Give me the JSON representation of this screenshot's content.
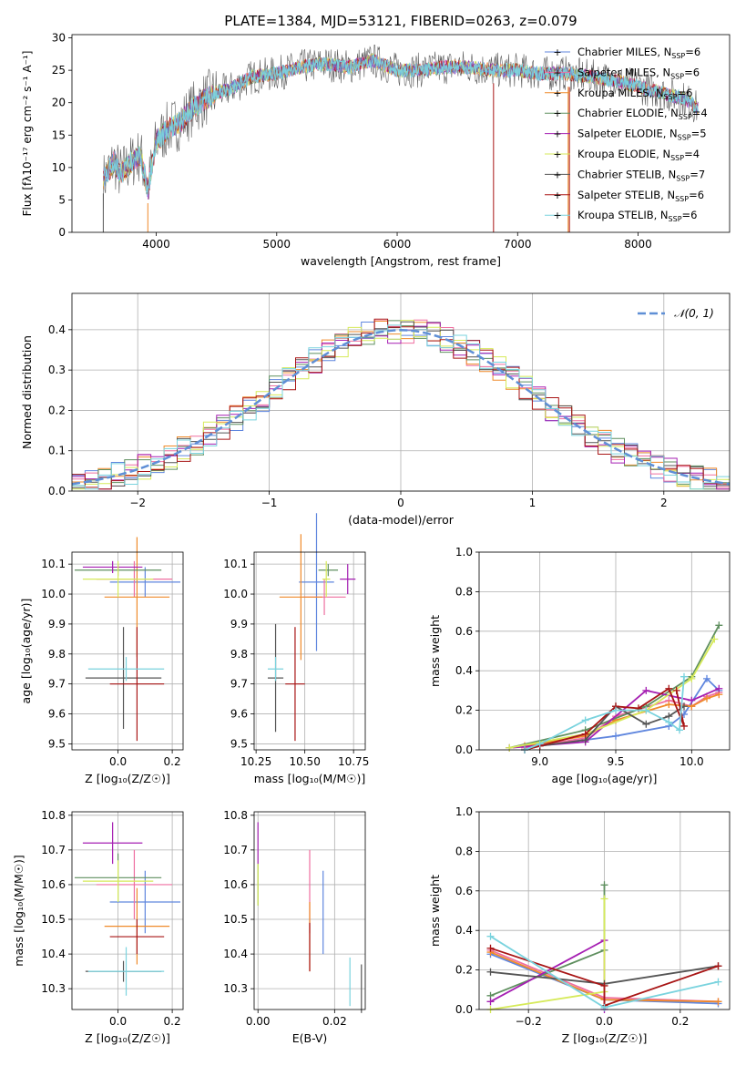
{
  "figure": {
    "title": "PLATE=1384, MJD=53121, FIBERID=0263, z=0.079"
  },
  "chart_data": [
    {
      "id": "spectrum",
      "type": "line",
      "xlabel": "wavelength [Angstrom, rest frame]",
      "ylabel": "Flux [fλ10⁻¹⁷ erg cm⁻² s⁻¹ A⁻¹]",
      "xlim": [
        3300,
        8760
      ],
      "ylim": [
        0,
        30.5
      ],
      "xticks": [
        4000,
        5000,
        6000,
        7000,
        8000
      ],
      "yticks": [
        0,
        5,
        10,
        15,
        20,
        25,
        30
      ],
      "grid": false,
      "legend_position": "top-right",
      "spectrum_anchor_points": [
        [
          3560,
          8
        ],
        [
          3650,
          11
        ],
        [
          3700,
          9
        ],
        [
          3800,
          11
        ],
        [
          3870,
          12
        ],
        [
          3930,
          6.5
        ],
        [
          3960,
          10
        ],
        [
          4000,
          14
        ],
        [
          4100,
          16
        ],
        [
          4200,
          17
        ],
        [
          4300,
          19
        ],
        [
          4400,
          20.5
        ],
        [
          4500,
          21.5
        ],
        [
          4600,
          22
        ],
        [
          4800,
          24
        ],
        [
          5000,
          24.5
        ],
        [
          5200,
          25.5
        ],
        [
          5400,
          26
        ],
        [
          5600,
          25.5
        ],
        [
          5800,
          26.5
        ],
        [
          6000,
          25
        ],
        [
          6200,
          25
        ],
        [
          6400,
          25.5
        ],
        [
          6600,
          25.5
        ],
        [
          6800,
          25
        ],
        [
          7000,
          25
        ],
        [
          7200,
          24.5
        ],
        [
          7400,
          24.5
        ],
        [
          7600,
          24
        ],
        [
          7800,
          23.5
        ],
        [
          8000,
          22.5
        ],
        [
          8200,
          21.5
        ],
        [
          8400,
          20.5
        ],
        [
          8500,
          19
        ]
      ],
      "series": [
        {
          "name": "Chabrier MILES, N_SSP=6",
          "label_main": "Chabrier MILES, N",
          "label_sub": "SSP",
          "label_end": "=6",
          "color": "#5f86de",
          "marker": "+"
        },
        {
          "name": "Salpeter MILES, N_SSP=6",
          "label_main": "Salpeter MILES, N",
          "label_sub": "SSP",
          "label_end": "=6",
          "color": "#ef6fa0",
          "marker": "+"
        },
        {
          "name": "Kroupa MILES, N_SSP=6",
          "label_main": "Kroupa MILES, N",
          "label_sub": "SSP",
          "label_end": "=6",
          "color": "#ef8a2a",
          "marker": "+"
        },
        {
          "name": "Chabrier ELODIE, N_SSP=4",
          "label_main": "Chabrier ELODIE, N",
          "label_sub": "SSP",
          "label_end": "=4",
          "color": "#5f8f5f",
          "marker": "+"
        },
        {
          "name": "Salpeter ELODIE, N_SSP=5",
          "label_main": "Salpeter ELODIE, N",
          "label_sub": "SSP",
          "label_end": "=5",
          "color": "#a51fb2",
          "marker": "+"
        },
        {
          "name": "Kroupa ELODIE, N_SSP=4",
          "label_main": "Kroupa ELODIE, N",
          "label_sub": "SSP",
          "label_end": "=4",
          "color": "#d6ea5a",
          "marker": "+"
        },
        {
          "name": "Chabrier STELIB, N_SSP=7",
          "label_main": "Chabrier STELIB, N",
          "label_sub": "SSP",
          "label_end": "=7",
          "color": "#555555",
          "marker": "+"
        },
        {
          "name": "Salpeter STELIB, N_SSP=6",
          "label_main": "Salpeter STELIB, N",
          "label_sub": "SSP",
          "label_end": "=6",
          "color": "#a81515",
          "marker": "+"
        },
        {
          "name": "Kroupa STELIB, N_SSP=6",
          "label_main": "Kroupa STELIB, N",
          "label_sub": "SSP",
          "label_end": "=6",
          "color": "#7ad3de",
          "marker": "+"
        }
      ]
    },
    {
      "id": "residuals",
      "type": "histogram",
      "xlabel": "(data-model)/error",
      "ylabel": "Normed distribution",
      "xlim": [
        -2.5,
        2.5
      ],
      "ylim": [
        0,
        0.49
      ],
      "xticks": [
        -2,
        -1,
        0,
        1,
        2
      ],
      "xtick_labels": [
        "−2",
        "−1",
        "0",
        "1",
        "2"
      ],
      "yticks": [
        0.0,
        0.1,
        0.2,
        0.3,
        0.4
      ],
      "ytick_labels": [
        "0.0",
        "0.1",
        "0.2",
        "0.3",
        "0.4"
      ],
      "grid": true,
      "legend": {
        "label": "𝒩(0, 1)",
        "style": "dashed",
        "color": "#5f8fd6",
        "position": "top-right"
      },
      "bin_width": 0.1,
      "reference_curve": "normal(0,1)"
    },
    {
      "id": "age_vs_Z",
      "type": "scatter",
      "style": "errorbar",
      "xlabel": "Z [log₁₀(Z/Z☉)]",
      "ylabel": "age  [log₁₀(age/yr)]",
      "xlim": [
        -0.17,
        0.24
      ],
      "ylim": [
        9.48,
        10.14
      ],
      "xticks": [
        0.0,
        0.2
      ],
      "yticks": [
        9.5,
        9.6,
        9.7,
        9.8,
        9.9,
        10.0,
        10.1
      ],
      "grid": true,
      "points": [
        {
          "series": "Chabrier MILES",
          "x": 0.1,
          "xerr": 0.13,
          "y": 10.04,
          "yerr": 0.05
        },
        {
          "series": "Salpeter MILES",
          "x": 0.06,
          "xerr": 0.14,
          "y": 10.05,
          "yerr": 0.06
        },
        {
          "series": "Kroupa MILES",
          "x": 0.07,
          "xerr": 0.12,
          "y": 9.99,
          "yerr": 0.2
        },
        {
          "series": "Chabrier ELODIE",
          "x": 0.0,
          "xerr": 0.16,
          "y": 10.08,
          "yerr": 0.02
        },
        {
          "series": "Salpeter ELODIE",
          "x": -0.02,
          "xerr": 0.11,
          "y": 10.09,
          "yerr": 0.02
        },
        {
          "series": "Kroupa ELODIE",
          "x": 0.0,
          "xerr": 0.13,
          "y": 10.05,
          "yerr": 0.06
        },
        {
          "series": "Chabrier STELIB",
          "x": 0.02,
          "xerr": 0.14,
          "y": 9.72,
          "yerr": 0.17
        },
        {
          "series": "Salpeter STELIB",
          "x": 0.07,
          "xerr": 0.1,
          "y": 9.7,
          "yerr": 0.19
        },
        {
          "series": "Kroupa STELIB",
          "x": 0.03,
          "xerr": 0.14,
          "y": 9.75,
          "yerr": 0.04
        }
      ]
    },
    {
      "id": "age_vs_mass",
      "type": "scatter",
      "style": "errorbar",
      "xlabel": "mass [log₁₀(M/M☉)]",
      "ylabel": "",
      "xlim": [
        10.24,
        10.81
      ],
      "ylim": [
        9.48,
        10.14
      ],
      "xticks": [
        10.25,
        10.5,
        10.75
      ],
      "yticks": [
        9.5,
        9.6,
        9.7,
        9.8,
        9.9,
        10.0,
        10.1
      ],
      "grid": true,
      "points": [
        {
          "series": "Chabrier MILES",
          "x": 10.56,
          "xerr": 0.09,
          "y": 10.04,
          "yerr": 0.23
        },
        {
          "series": "Salpeter MILES",
          "x": 10.6,
          "xerr": 0.11,
          "y": 9.99,
          "yerr": 0.06
        },
        {
          "series": "Kroupa MILES",
          "x": 10.48,
          "xerr": 0.11,
          "y": 9.99,
          "yerr": 0.21
        },
        {
          "series": "Chabrier ELODIE",
          "x": 10.62,
          "xerr": 0.05,
          "y": 10.08,
          "yerr": 0.02
        },
        {
          "series": "Salpeter ELODIE",
          "x": 10.72,
          "xerr": 0.04,
          "y": 10.05,
          "yerr": 0.05
        },
        {
          "series": "Kroupa ELODIE",
          "x": 10.61,
          "xerr": 0.02,
          "y": 10.05,
          "yerr": 0.06
        },
        {
          "series": "Chabrier STELIB",
          "x": 10.35,
          "xerr": 0.04,
          "y": 9.72,
          "yerr": 0.18
        },
        {
          "series": "Salpeter STELIB",
          "x": 10.45,
          "xerr": 0.05,
          "y": 9.7,
          "yerr": 0.19
        },
        {
          "series": "Kroupa STELIB",
          "x": 10.35,
          "xerr": 0.04,
          "y": 9.75,
          "yerr": 0.04
        }
      ]
    },
    {
      "id": "mass_weight_vs_age",
      "type": "line",
      "xlabel": "age  [log₁₀(age/yr)]",
      "ylabel": "mass weight",
      "xlim": [
        8.6,
        10.25
      ],
      "ylim": [
        0,
        1.0
      ],
      "xticks": [
        9.0,
        9.5,
        10.0
      ],
      "yticks": [
        0.0,
        0.2,
        0.4,
        0.6,
        0.8,
        1.0
      ],
      "grid": true,
      "series": [
        {
          "name": "Chabrier MILES",
          "x": [
            8.9,
            9.0,
            9.3,
            9.5,
            9.85,
            9.95,
            10.1,
            10.18
          ],
          "y": [
            0.0,
            0.03,
            0.05,
            0.07,
            0.12,
            0.18,
            0.36,
            0.3
          ]
        },
        {
          "name": "Salpeter MILES",
          "x": [
            8.9,
            9.3,
            9.5,
            9.85,
            10.0,
            10.1,
            10.18
          ],
          "y": [
            0.01,
            0.06,
            0.17,
            0.25,
            0.22,
            0.27,
            0.29
          ]
        },
        {
          "name": "Kroupa MILES",
          "x": [
            8.9,
            9.3,
            9.5,
            9.85,
            10.0,
            10.1,
            10.18
          ],
          "y": [
            0.02,
            0.07,
            0.15,
            0.23,
            0.22,
            0.26,
            0.28
          ]
        },
        {
          "name": "Chabrier ELODIE",
          "x": [
            8.8,
            9.3,
            9.7,
            10.0,
            10.18
          ],
          "y": [
            0.01,
            0.1,
            0.22,
            0.37,
            0.63
          ]
        },
        {
          "name": "Salpeter ELODIE",
          "x": [
            8.8,
            9.3,
            9.7,
            10.0,
            10.18
          ],
          "y": [
            0.01,
            0.04,
            0.3,
            0.25,
            0.31
          ]
        },
        {
          "name": "Kroupa ELODIE",
          "x": [
            8.8,
            9.3,
            9.7,
            10.0,
            10.15
          ],
          "y": [
            0.01,
            0.08,
            0.2,
            0.36,
            0.56
          ]
        },
        {
          "name": "Chabrier STELIB",
          "x": [
            8.9,
            9.0,
            9.3,
            9.5,
            9.7,
            9.85,
            9.95
          ],
          "y": [
            0.0,
            0.02,
            0.05,
            0.22,
            0.13,
            0.17,
            0.22
          ]
        },
        {
          "name": "Salpeter STELIB",
          "x": [
            8.9,
            9.0,
            9.3,
            9.5,
            9.65,
            9.85,
            9.95,
            9.9
          ],
          "y": [
            0.0,
            0.02,
            0.08,
            0.22,
            0.21,
            0.31,
            0.12,
            0.3
          ]
        },
        {
          "name": "Kroupa STELIB",
          "x": [
            8.9,
            9.0,
            9.3,
            9.5,
            9.7,
            9.85,
            9.92,
            9.95
          ],
          "y": [
            0.0,
            0.03,
            0.15,
            0.2,
            0.2,
            0.14,
            0.1,
            0.37
          ]
        }
      ]
    },
    {
      "id": "mass_vs_Z",
      "type": "scatter",
      "style": "errorbar",
      "xlabel": "Z [log₁₀(Z/Z☉)]",
      "ylabel": "mass [log₁₀(M/M☉)]",
      "xlim": [
        -0.17,
        0.24
      ],
      "ylim": [
        10.24,
        10.81
      ],
      "xticks": [
        0.0,
        0.2
      ],
      "yticks": [
        10.3,
        10.4,
        10.5,
        10.6,
        10.7,
        10.8
      ],
      "grid": true,
      "points": [
        {
          "series": "Chabrier MILES",
          "x": 0.1,
          "xerr": 0.13,
          "y": 10.55,
          "yerr": 0.09
        },
        {
          "series": "Salpeter MILES",
          "x": 0.06,
          "xerr": 0.14,
          "y": 10.6,
          "yerr": 0.1
        },
        {
          "series": "Kroupa MILES",
          "x": 0.07,
          "xerr": 0.12,
          "y": 10.48,
          "yerr": 0.11
        },
        {
          "series": "Chabrier ELODIE",
          "x": 0.0,
          "xerr": 0.16,
          "y": 10.62,
          "yerr": 0.07
        },
        {
          "series": "Salpeter ELODIE",
          "x": -0.02,
          "xerr": 0.11,
          "y": 10.72,
          "yerr": 0.06
        },
        {
          "series": "Kroupa ELODIE",
          "x": 0.0,
          "xerr": 0.13,
          "y": 10.61,
          "yerr": 0.06
        },
        {
          "series": "Chabrier STELIB",
          "x": 0.02,
          "xerr": 0.14,
          "y": 10.35,
          "yerr": 0.03
        },
        {
          "series": "Salpeter STELIB",
          "x": 0.07,
          "xerr": 0.1,
          "y": 10.45,
          "yerr": 0.05
        },
        {
          "series": "Kroupa STELIB",
          "x": 0.03,
          "xerr": 0.14,
          "y": 10.35,
          "yerr": 0.07
        }
      ]
    },
    {
      "id": "mass_vs_EBV",
      "type": "scatter",
      "style": "errorbar",
      "xlabel": "E(B-V)",
      "ylabel": "",
      "xlim": [
        -0.001,
        0.028
      ],
      "ylim": [
        10.24,
        10.81
      ],
      "xticks": [
        0.0,
        0.02
      ],
      "yticks": [
        10.3,
        10.4,
        10.5,
        10.6,
        10.7,
        10.8
      ],
      "grid": true,
      "points": [
        {
          "series": "Chabrier MILES",
          "x": 0.017,
          "xerr": 0.0,
          "y": 10.52,
          "yerr": 0.12
        },
        {
          "series": "Salpeter MILES",
          "x": 0.0135,
          "xerr": 0.0,
          "y": 10.58,
          "yerr": 0.12
        },
        {
          "series": "Kroupa MILES",
          "x": 0.0135,
          "xerr": 0.0,
          "y": 10.45,
          "yerr": 0.1
        },
        {
          "series": "Chabrier ELODIE",
          "x": 0.0,
          "xerr": 0.0,
          "y": 10.6,
          "yerr": 0.06
        },
        {
          "series": "Salpeter ELODIE",
          "x": 0.0,
          "xerr": 0.0,
          "y": 10.72,
          "yerr": 0.06
        },
        {
          "series": "Kroupa ELODIE",
          "x": 0.0,
          "xerr": 0.0,
          "y": 10.6,
          "yerr": 0.06
        },
        {
          "series": "Chabrier STELIB",
          "x": 0.027,
          "xerr": 0.0,
          "y": 10.3,
          "yerr": 0.07
        },
        {
          "series": "Salpeter STELIB",
          "x": 0.0135,
          "xerr": 0.0,
          "y": 10.42,
          "yerr": 0.07
        },
        {
          "series": "Kroupa STELIB",
          "x": 0.024,
          "xerr": 0.0,
          "y": 10.32,
          "yerr": 0.07
        }
      ]
    },
    {
      "id": "mass_weight_vs_Z",
      "type": "line",
      "xlabel": "Z [log₁₀(Z/Z☉)]",
      "ylabel": "mass weight",
      "xlim": [
        -0.33,
        0.33
      ],
      "ylim": [
        0,
        1.0
      ],
      "xticks": [
        -0.2,
        0.0,
        0.2
      ],
      "xtick_labels": [
        "−0.2",
        "0.0",
        "0.2"
      ],
      "yticks": [
        0.0,
        0.2,
        0.4,
        0.6,
        0.8,
        1.0
      ],
      "grid": true,
      "series": [
        {
          "name": "Chabrier MILES",
          "x": [
            -0.3,
            0.0,
            0.3
          ],
          "y": [
            0.28,
            0.05,
            0.03
          ]
        },
        {
          "name": "Salpeter MILES",
          "x": [
            -0.3,
            0.0,
            0.3
          ],
          "y": [
            0.3,
            0.06,
            0.04
          ]
        },
        {
          "name": "Kroupa MILES",
          "x": [
            -0.3,
            0.0,
            0.3
          ],
          "y": [
            0.29,
            0.05,
            0.04
          ]
        },
        {
          "name": "Chabrier ELODIE",
          "x": [
            -0.3,
            0.0,
            0.0
          ],
          "y": [
            0.07,
            0.3,
            0.63
          ]
        },
        {
          "name": "Salpeter ELODIE",
          "x": [
            -0.3,
            0.0,
            0.0
          ],
          "y": [
            0.04,
            0.35,
            0.0
          ]
        },
        {
          "name": "Kroupa ELODIE",
          "x": [
            -0.3,
            0.0,
            0.0
          ],
          "y": [
            0.0,
            0.09,
            0.56
          ]
        },
        {
          "name": "Chabrier STELIB",
          "x": [
            -0.3,
            0.0,
            0.3
          ],
          "y": [
            0.19,
            0.13,
            0.22
          ]
        },
        {
          "name": "Salpeter STELIB",
          "x": [
            -0.3,
            0.0,
            0.0,
            0.3
          ],
          "y": [
            0.31,
            0.12,
            0.02,
            0.22
          ]
        },
        {
          "name": "Kroupa STELIB",
          "x": [
            -0.3,
            0.0,
            0.3
          ],
          "y": [
            0.37,
            0.01,
            0.14
          ]
        }
      ]
    }
  ]
}
